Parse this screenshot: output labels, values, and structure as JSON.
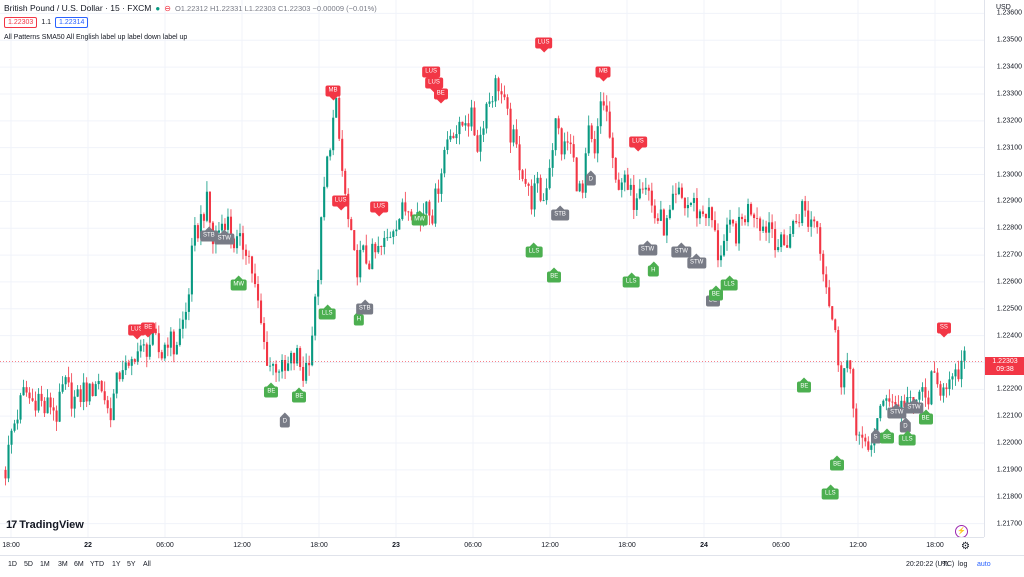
{
  "header": {
    "symbol_title": "British Pound / U.S. Dollar · 15 · FXCM",
    "ohlc_text": "O1.22312 H1.22331 L1.22303 C1.22303 −0.00009 (−0.01%)",
    "sell_price": "1.22303",
    "spread": "1.1",
    "buy_price": "1.22314",
    "indicator_label": "All Patterns SMA50 All English label up label down label up"
  },
  "price_scale": {
    "currency": "USD",
    "last_price": "1.22303",
    "countdown": "09:38",
    "last_price_value": 1.22303
  },
  "chart_data": {
    "type": "candlestick",
    "ylim": [
      1.2165,
      1.2365
    ],
    "y_ticks": [
      "1.23600",
      "1.23500",
      "1.23400",
      "1.23300",
      "1.23200",
      "1.23100",
      "1.23000",
      "1.22900",
      "1.22800",
      "1.22700",
      "1.22600",
      "1.22500",
      "1.22400",
      "1.22300",
      "1.22200",
      "1.22100",
      "1.22000",
      "1.21900",
      "1.21800",
      "1.21700"
    ],
    "x_ticks": [
      {
        "label": "18:00",
        "bold": false
      },
      {
        "label": "22",
        "bold": true
      },
      {
        "label": "06:00",
        "bold": false
      },
      {
        "label": "12:00",
        "bold": false
      },
      {
        "label": "18:00",
        "bold": false
      },
      {
        "label": "23",
        "bold": true
      },
      {
        "label": "06:00",
        "bold": false
      },
      {
        "label": "12:00",
        "bold": false
      },
      {
        "label": "18:00",
        "bold": false
      },
      {
        "label": "24",
        "bold": true
      },
      {
        "label": "06:00",
        "bold": false
      },
      {
        "label": "12:00",
        "bold": false
      },
      {
        "label": "18:00",
        "bold": false
      }
    ],
    "path": [
      1.219,
      1.2205,
      1.2212,
      1.222,
      1.2215,
      1.2218,
      1.2212,
      1.2215,
      1.221,
      1.2222,
      1.2218,
      1.2215,
      1.222,
      1.2218,
      1.2224,
      1.222,
      1.221,
      1.222,
      1.223,
      1.2225,
      1.2235,
      1.2233,
      1.2237,
      1.2238,
      1.2232,
      1.224,
      1.2235,
      1.2242,
      1.225,
      1.2275,
      1.2282,
      1.229,
      1.2275,
      1.228,
      1.2285,
      1.2276,
      1.2273,
      1.2275,
      1.2265,
      1.225,
      1.2235,
      1.2228,
      1.223,
      1.2225,
      1.223,
      1.2232,
      1.2225,
      1.2235,
      1.2255,
      1.229,
      1.2312,
      1.2325,
      1.23,
      1.228,
      1.2265,
      1.227,
      1.2268,
      1.227,
      1.2272,
      1.2276,
      1.2283,
      1.2285,
      1.2288,
      1.229,
      1.2282,
      1.2292,
      1.2285,
      1.23,
      1.2312,
      1.2318,
      1.2315,
      1.2322,
      1.232,
      1.231,
      1.2325,
      1.233,
      1.2335,
      1.2325,
      1.2315,
      1.2308,
      1.23,
      1.229,
      1.2295,
      1.229,
      1.2305,
      1.232,
      1.2308,
      1.2313,
      1.23,
      1.229,
      1.2315,
      1.2305,
      1.233,
      1.232,
      1.2295,
      1.23,
      1.2293,
      1.2291,
      1.23,
      1.2297,
      1.2285,
      1.2283,
      1.228,
      1.2288,
      1.2292,
      1.2288,
      1.229,
      1.2285,
      1.2287,
      1.2283,
      1.227,
      1.2275,
      1.228,
      1.2278,
      1.2285,
      1.2288,
      1.2286,
      1.228,
      1.2283,
      1.2275,
      1.2272,
      1.2278,
      1.2283,
      1.2288,
      1.2282,
      1.2285,
      1.227,
      1.2255,
      1.224,
      1.2225,
      1.223,
      1.221,
      1.22,
      1.2195,
      1.2205,
      1.221,
      1.222,
      1.2215,
      1.2212,
      1.2218,
      1.221,
      1.222,
      1.2215,
      1.2223,
      1.222,
      1.2225,
      1.222,
      1.2225,
      1.223
    ]
  },
  "patterns": [
    {
      "label": "LUS",
      "color": "red",
      "dir": "down",
      "t": 0.138,
      "p": 1.2242
    },
    {
      "label": "BE",
      "color": "red",
      "dir": "down",
      "t": 0.15,
      "p": 1.2243
    },
    {
      "label": "STB",
      "color": "gray",
      "dir": "up",
      "t": 0.213,
      "p": 1.2277
    },
    {
      "label": "STW",
      "color": "gray",
      "dir": "up",
      "t": 0.229,
      "p": 1.2276
    },
    {
      "label": "MW",
      "color": "green",
      "dir": "up",
      "t": 0.244,
      "p": 1.2259
    },
    {
      "label": "BE",
      "color": "green",
      "dir": "up",
      "t": 0.278,
      "p": 1.2219
    },
    {
      "label": "D",
      "color": "gray",
      "dir": "up",
      "t": 0.292,
      "p": 1.2208
    },
    {
      "label": "BE",
      "color": "green",
      "dir": "up",
      "t": 0.307,
      "p": 1.2217
    },
    {
      "label": "MB",
      "color": "red",
      "dir": "down",
      "t": 0.342,
      "p": 1.2331
    },
    {
      "label": "LLS",
      "color": "green",
      "dir": "up",
      "t": 0.336,
      "p": 1.2248
    },
    {
      "label": "LUS",
      "color": "red",
      "dir": "down",
      "t": 0.35,
      "p": 1.229
    },
    {
      "label": "H",
      "color": "green",
      "dir": "up",
      "t": 0.369,
      "p": 1.2246
    },
    {
      "label": "STB",
      "color": "gray",
      "dir": "up",
      "t": 0.375,
      "p": 1.225
    },
    {
      "label": "LUS",
      "color": "red",
      "dir": "down",
      "t": 0.39,
      "p": 1.2288
    },
    {
      "label": "MW",
      "color": "green",
      "dir": "up",
      "t": 0.432,
      "p": 1.2283
    },
    {
      "label": "LUS",
      "color": "red",
      "dir": "down",
      "t": 0.444,
      "p": 1.2338
    },
    {
      "label": "LUS",
      "color": "red",
      "dir": "down",
      "t": 0.447,
      "p": 1.2334
    },
    {
      "label": "BE",
      "color": "red",
      "dir": "down",
      "t": 0.454,
      "p": 1.233
    },
    {
      "label": "LUS",
      "color": "red",
      "dir": "down",
      "t": 0.561,
      "p": 1.2349
    },
    {
      "label": "LLS",
      "color": "green",
      "dir": "up",
      "t": 0.551,
      "p": 1.2271
    },
    {
      "label": "STB",
      "color": "gray",
      "dir": "up",
      "t": 0.578,
      "p": 1.2285
    },
    {
      "label": "BE",
      "color": "green",
      "dir": "up",
      "t": 0.572,
      "p": 1.2262
    },
    {
      "label": "MB",
      "color": "red",
      "dir": "down",
      "t": 0.623,
      "p": 1.2338
    },
    {
      "label": "D",
      "color": "gray",
      "dir": "up",
      "t": 0.61,
      "p": 1.2298
    },
    {
      "label": "LUS",
      "color": "red",
      "dir": "down",
      "t": 0.659,
      "p": 1.2312
    },
    {
      "label": "LLS",
      "color": "green",
      "dir": "up",
      "t": 0.652,
      "p": 1.226
    },
    {
      "label": "STW",
      "color": "gray",
      "dir": "up",
      "t": 0.669,
      "p": 1.2272
    },
    {
      "label": "H",
      "color": "green",
      "dir": "up",
      "t": 0.675,
      "p": 1.2264
    },
    {
      "label": "STW",
      "color": "gray",
      "dir": "up",
      "t": 0.704,
      "p": 1.2271
    },
    {
      "label": "STW",
      "color": "gray",
      "dir": "up",
      "t": 0.72,
      "p": 1.2267
    },
    {
      "label": "BE",
      "color": "gray",
      "dir": "up",
      "t": 0.737,
      "p": 1.2253
    },
    {
      "label": "BE",
      "color": "green",
      "dir": "up",
      "t": 0.74,
      "p": 1.2255
    },
    {
      "label": "LLS",
      "color": "green",
      "dir": "up",
      "t": 0.754,
      "p": 1.2259
    },
    {
      "label": "SS",
      "color": "red",
      "dir": "down",
      "t": 0.977,
      "p": 1.2243
    },
    {
      "label": "BE",
      "color": "green",
      "dir": "up",
      "t": 0.832,
      "p": 1.2221
    },
    {
      "label": "BE",
      "color": "green",
      "dir": "up",
      "t": 0.866,
      "p": 1.2192
    },
    {
      "label": "LLS",
      "color": "green",
      "dir": "up",
      "t": 0.859,
      "p": 1.2181
    },
    {
      "label": "STW",
      "color": "gray",
      "dir": "up",
      "t": 0.928,
      "p": 1.2211
    },
    {
      "label": "STW",
      "color": "gray",
      "dir": "up",
      "t": 0.946,
      "p": 1.2213
    },
    {
      "label": "BE",
      "color": "green",
      "dir": "up",
      "t": 0.958,
      "p": 1.2209
    },
    {
      "label": "D",
      "color": "gray",
      "dir": "up",
      "t": 0.937,
      "p": 1.2206
    },
    {
      "label": "S",
      "color": "gray",
      "dir": "up",
      "t": 0.906,
      "p": 1.2202
    },
    {
      "label": "BE",
      "color": "green",
      "dir": "up",
      "t": 0.918,
      "p": 1.2202
    },
    {
      "label": "LLS",
      "color": "green",
      "dir": "up",
      "t": 0.939,
      "p": 1.2201
    }
  ],
  "colors": {
    "up": "#089981",
    "down": "#f23645",
    "last_price": "#f23645"
  },
  "time_axis": {
    "gear": "⚙"
  },
  "bottom_bar": {
    "ranges": [
      "1D",
      "5D",
      "1M",
      "3M",
      "6M",
      "YTD",
      "1Y",
      "5Y",
      "All"
    ],
    "clock": "20:20:22 (UTC)",
    "percent": "%",
    "log": "log",
    "auto": "auto"
  },
  "logo": {
    "text": "TradingView",
    "mark": "17"
  }
}
